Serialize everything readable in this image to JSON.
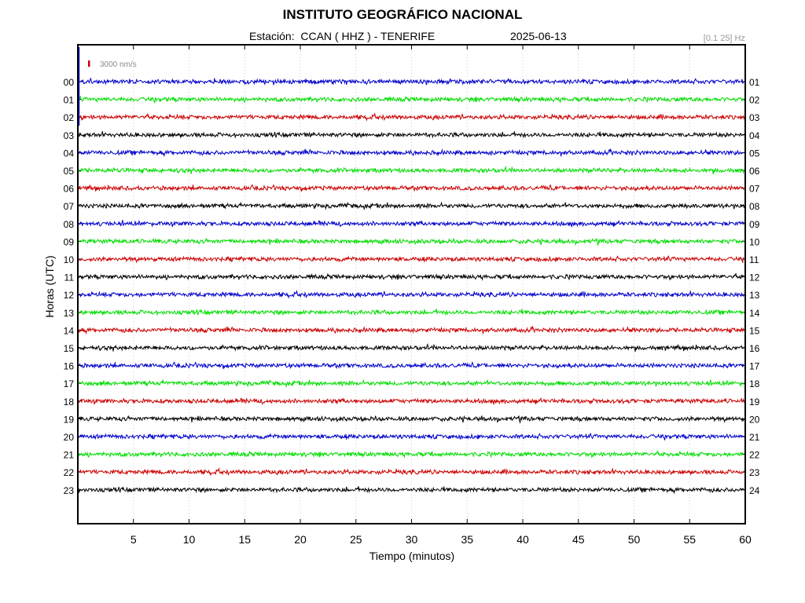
{
  "chart_data": {
    "type": "line",
    "title": "INSTITUTO GEOGRÁFICO NACIONAL",
    "subtitle": "Estación:  CCAN ( HHZ ) - TENERIFE",
    "date": "2025-06-13",
    "filter": "[0.1 25] Hz",
    "scale_label": "3000 nm/s",
    "xlabel": "Tiempo (minutos)",
    "ylabel": "Horas (UTC)",
    "xlim": [
      0,
      60
    ],
    "x_ticks": [
      "5",
      "10",
      "15",
      "20",
      "25",
      "30",
      "35",
      "40",
      "45",
      "50",
      "55",
      "60"
    ],
    "left_hour_labels": [
      "00",
      "01",
      "02",
      "03",
      "04",
      "05",
      "06",
      "07",
      "08",
      "09",
      "10",
      "11",
      "12",
      "13",
      "14",
      "15",
      "16",
      "17",
      "18",
      "19",
      "20",
      "21",
      "22",
      "23"
    ],
    "right_hour_labels": [
      "01",
      "02",
      "03",
      "04",
      "05",
      "06",
      "07",
      "08",
      "09",
      "10",
      "11",
      "12",
      "13",
      "14",
      "15",
      "16",
      "17",
      "18",
      "19",
      "20",
      "21",
      "22",
      "23",
      "24"
    ],
    "trace_colors": [
      "#0000cc",
      "#00dd00",
      "#cc0000",
      "#000000"
    ],
    "scale_color": "#cc0000",
    "grid": "vertical dotted every 5 minutes"
  }
}
